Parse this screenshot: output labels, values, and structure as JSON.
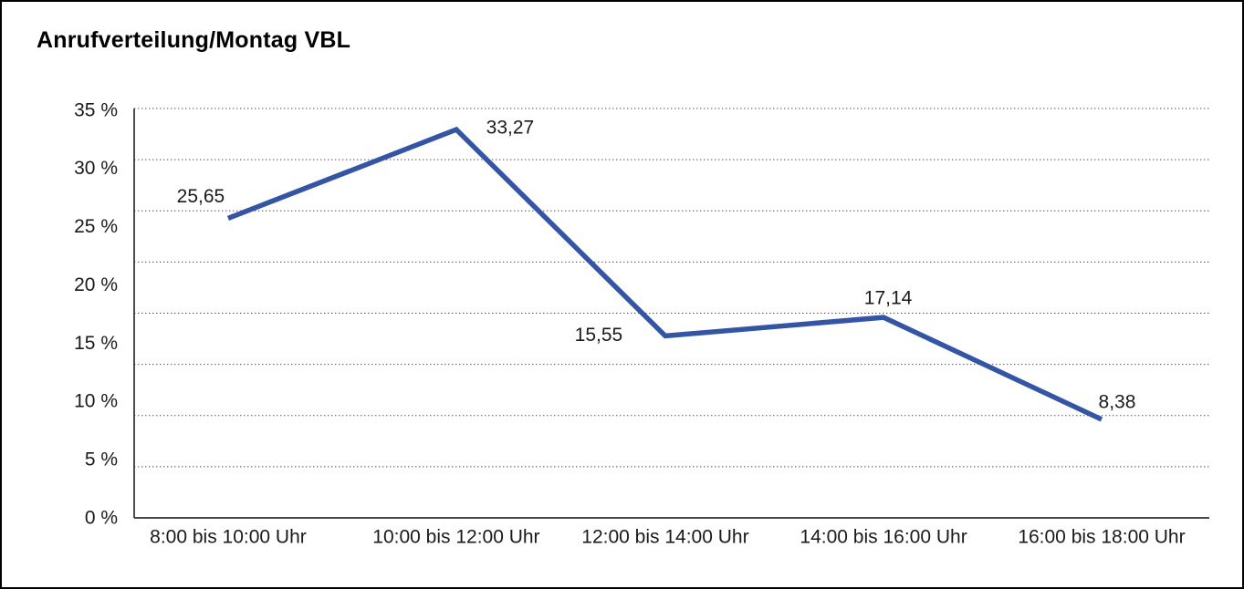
{
  "chart_data": {
    "type": "line",
    "title": "Anrufverteilung/Montag VBL",
    "categories": [
      "8:00 bis 10:00 Uhr",
      "10:00 bis 12:00 Uhr",
      "12:00 bis 14:00 Uhr",
      "14:00 bis 16:00 Uhr",
      "16:00 bis 18:00 Uhr"
    ],
    "values": [
      25.65,
      33.27,
      15.55,
      17.14,
      8.38
    ],
    "value_labels": [
      "25,65",
      "33,27",
      "15,55",
      "17,14",
      "8,38"
    ],
    "xlabel": "",
    "ylabel": "",
    "ylim": [
      0,
      35
    ],
    "ytick_step": 5,
    "ytick_labels": [
      "35 %",
      "30 %",
      "25 %",
      "20 %",
      "15 %",
      "10 %",
      "5 %",
      "0 %"
    ],
    "grid": "horizontal-dotted",
    "legend": "none",
    "line_color": "#3454A4",
    "axis_color": "#2f2f2f",
    "grid_color": "#4a4a4a",
    "text_color": "#1a1a1a",
    "background_color": "#ffffff",
    "frame_border_color": "#000000"
  }
}
